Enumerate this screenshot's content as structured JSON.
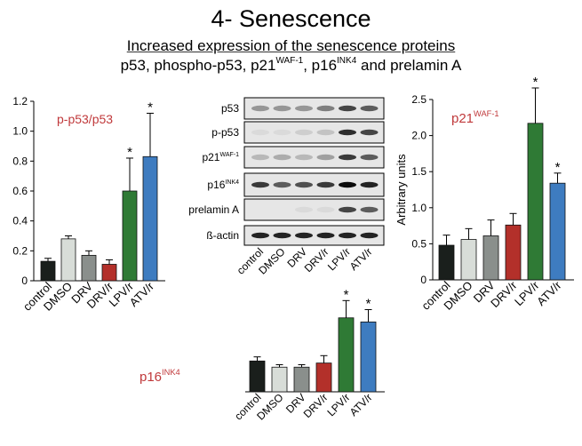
{
  "slide": {
    "title": "4- Senescence",
    "subtitle_line1": "Increased expression of the senescence proteins",
    "subtitle_line2_a": "p53, phospho-p53, p21",
    "subtitle_line2_sup1": "WAF-1",
    "subtitle_line2_b": ", p16",
    "subtitle_line2_sup2": "INK4",
    "subtitle_line2_c": " and prelamin A"
  },
  "colors": {
    "control": "#1a1f1c",
    "DMSO": "#d8ddd8",
    "DRV": "#8a8f8c",
    "DRV/r": "#b3302a",
    "LPV/r": "#2f7a35",
    "ATV/r": "#3e7cc0",
    "panel_title": "#c0393b"
  },
  "blot": {
    "rows": [
      {
        "label": "p53",
        "sup": ""
      },
      {
        "label": "p-p53",
        "sup": ""
      },
      {
        "label": "p21",
        "sup": "WAF-1"
      },
      {
        "label": "p16",
        "sup": "INK4"
      },
      {
        "label": "prelamin A",
        "sup": ""
      },
      {
        "label": "ß-actin",
        "sup": ""
      }
    ],
    "lanes": [
      "control",
      "DMSO",
      "DRV",
      "DRV/r",
      "LPV/r",
      "ATV/r"
    ]
  },
  "chart_data": [
    {
      "type": "bar",
      "title": "p-p53/p53",
      "categories": [
        "control",
        "DMSO",
        "DRV",
        "DRV/r",
        "LPV/r",
        "ATV/r"
      ],
      "values": [
        0.13,
        0.28,
        0.17,
        0.11,
        0.6,
        0.83
      ],
      "errors": [
        0.02,
        0.02,
        0.03,
        0.03,
        0.22,
        0.29
      ],
      "significant": [
        false,
        false,
        false,
        false,
        true,
        true
      ],
      "ylim": [
        0,
        1.2
      ],
      "yticks": [
        "0",
        "0.2",
        "0.4",
        "0.6",
        "0.8",
        "1.0",
        "1.2"
      ],
      "ylabel": "",
      "xlabel": ""
    },
    {
      "type": "bar",
      "title": "p21",
      "title_sup": "WAF-1",
      "categories": [
        "control",
        "DMSO",
        "DRV",
        "DRV/r",
        "LPV/r",
        "ATV/r"
      ],
      "values": [
        0.48,
        0.56,
        0.61,
        0.76,
        2.17,
        1.34
      ],
      "errors": [
        0.14,
        0.15,
        0.22,
        0.16,
        0.49,
        0.14
      ],
      "significant": [
        false,
        false,
        false,
        false,
        true,
        true
      ],
      "ylim": [
        0,
        2.5
      ],
      "yticks": [
        "0",
        "0.5",
        "1.0",
        "1.5",
        "2.0",
        "2.5"
      ],
      "ylabel": "Arbitrary units",
      "xlabel": ""
    },
    {
      "type": "bar",
      "title": "p16",
      "title_sup": "INK4",
      "categories": [
        "control",
        "DMSO",
        "DRV",
        "DRV/r",
        "LPV/r",
        "ATV/r"
      ],
      "values": [
        0.75,
        0.6,
        0.6,
        0.7,
        1.8,
        1.7
      ],
      "errors": [
        0.1,
        0.06,
        0.06,
        0.18,
        0.42,
        0.3
      ],
      "significant": [
        false,
        false,
        false,
        false,
        true,
        true
      ],
      "ylabel": "",
      "xlabel": ""
    }
  ]
}
